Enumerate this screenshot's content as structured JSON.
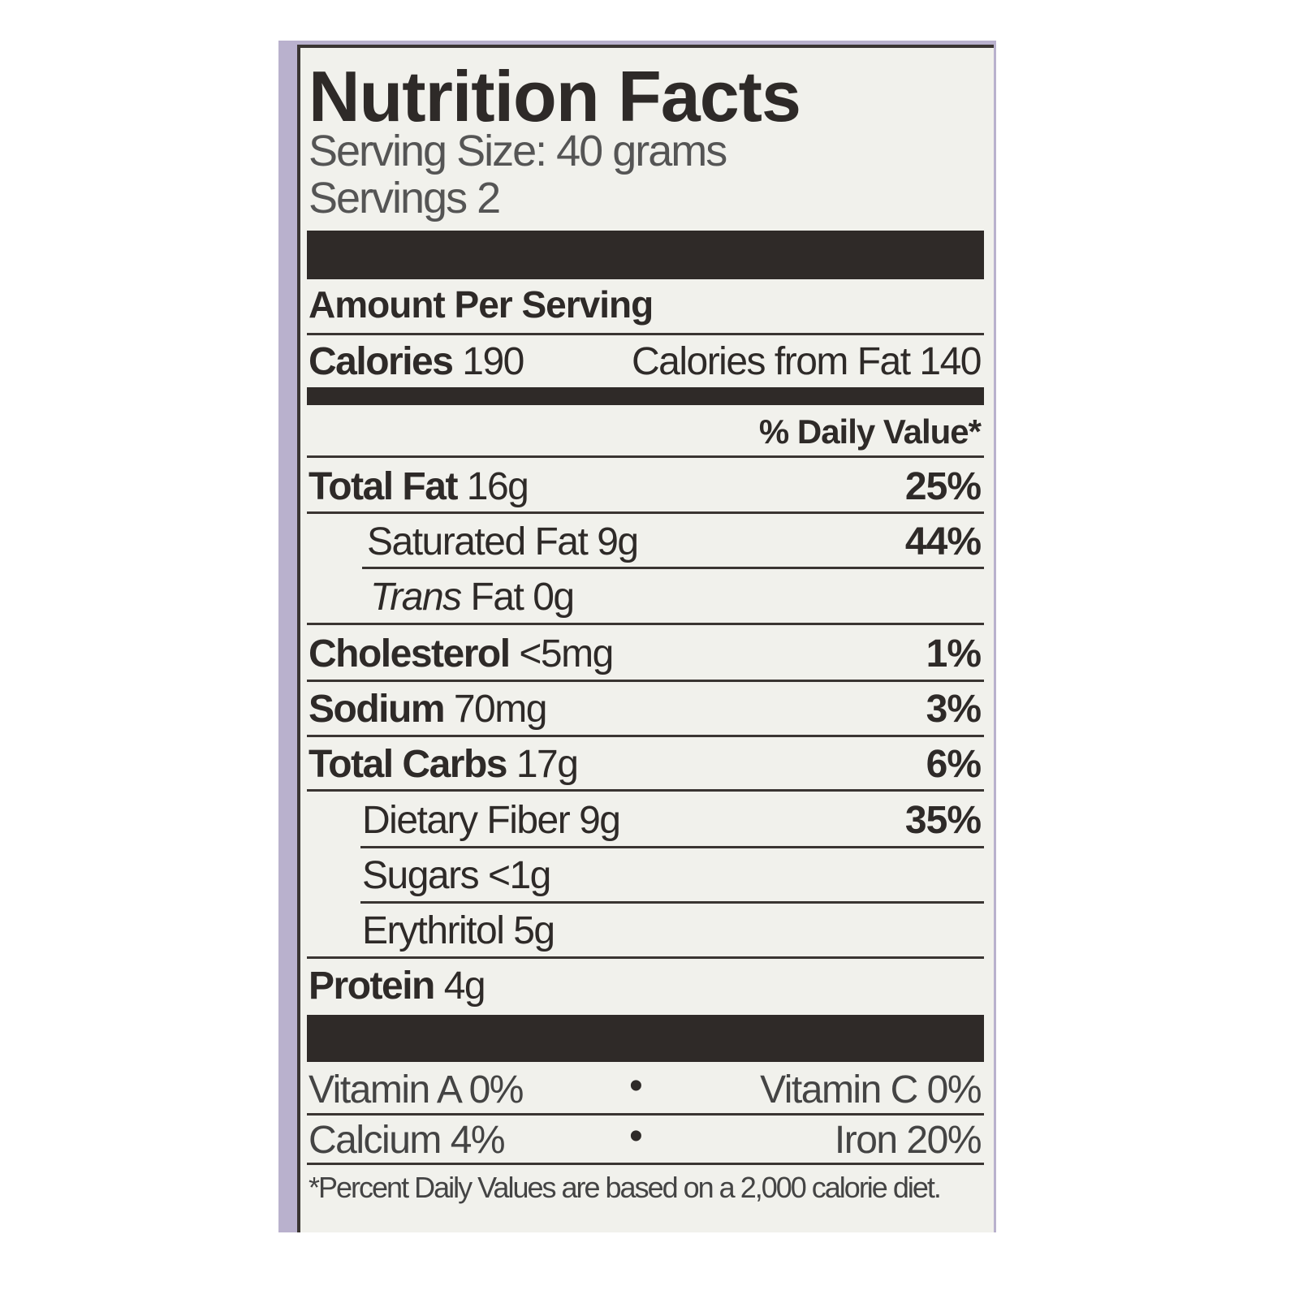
{
  "title": "Nutrition Facts",
  "serving_size": "Serving Size: 40 grams",
  "servings": "Servings 2",
  "amount_per_serving": "Amount Per Serving",
  "calories": {
    "label": "Calories",
    "value": "190",
    "from_fat_label": "Calories from Fat",
    "from_fat_value": "140"
  },
  "daily_value_header": "% Daily Value*",
  "nutrients": [
    {
      "label": "Total Fat",
      "amount": "16g",
      "dv": "25%"
    },
    {
      "label": "Saturated Fat",
      "amount": "9g",
      "dv": "44%"
    },
    {
      "label": "Trans",
      "label2": "Fat",
      "amount": "0g"
    },
    {
      "label": "Cholesterol",
      "amount": "<5mg",
      "dv": "1%"
    },
    {
      "label": "Sodium",
      "amount": "70mg",
      "dv": "3%"
    },
    {
      "label": "Total Carbs",
      "amount": "17g",
      "dv": "6%"
    },
    {
      "label": "Dietary Fiber",
      "amount": "9g",
      "dv": "35%"
    },
    {
      "label": "Sugars",
      "amount": "<1g"
    },
    {
      "label": "Erythritol",
      "amount": "5g"
    },
    {
      "label": "Protein",
      "amount": "4g"
    }
  ],
  "vitamins": {
    "vitamin_a": "Vitamin A 0%",
    "vitamin_c": "Vitamin C 0%",
    "calcium": "Calcium 4%",
    "iron": "Iron 20%",
    "bullet": "•"
  },
  "footnote": "*Percent Daily Values are based on a 2,000 calorie diet.",
  "colors": {
    "panel": "#b9b1cd",
    "label_bg": "#f1f1ec",
    "ink": "#2e2a28"
  }
}
